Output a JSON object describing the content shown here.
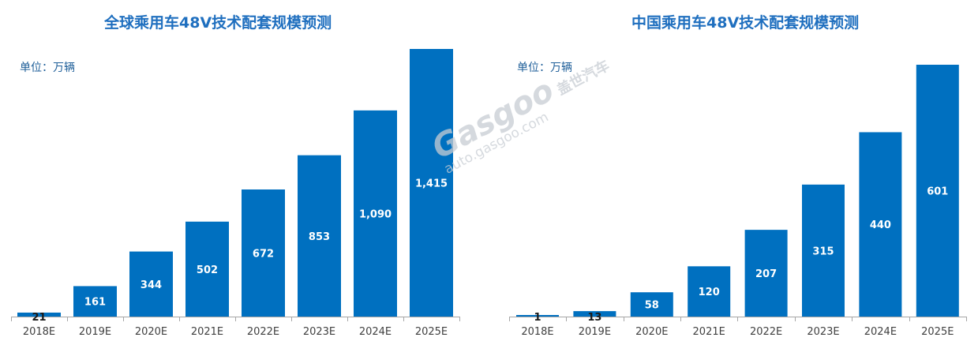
{
  "chart_data": [
    {
      "type": "bar",
      "title": "全球乘用车48V技术配套规模预测",
      "unit": "单位：万辆",
      "categories": [
        "2018E",
        "2019E",
        "2020E",
        "2021E",
        "2022E",
        "2023E",
        "2024E",
        "2025E"
      ],
      "values": [
        21,
        161,
        344,
        502,
        672,
        853,
        1090,
        1415
      ],
      "value_labels": [
        "21",
        "161",
        "344",
        "502",
        "672",
        "853",
        "1,090",
        "1,415"
      ],
      "ylim": [
        0,
        1415
      ],
      "grid": false,
      "bar_color": "#0070c0"
    },
    {
      "type": "bar",
      "title": "中国乘用车48V技术配套规模预测",
      "unit": "单位：万辆",
      "categories": [
        "2018E",
        "2019E",
        "2020E",
        "2021E",
        "2022E",
        "2023E",
        "2024E",
        "2025E"
      ],
      "values": [
        1,
        13,
        58,
        120,
        207,
        315,
        440,
        601
      ],
      "value_labels": [
        "1",
        "13",
        "58",
        "120",
        "207",
        "315",
        "440",
        "601"
      ],
      "ylim": [
        0,
        601
      ],
      "grid": false,
      "bar_color": "#0070c0"
    }
  ],
  "watermark": {
    "brand": "Gasgoo",
    "cn": "盖世汽车",
    "url": "auto.gasgoo.com"
  }
}
